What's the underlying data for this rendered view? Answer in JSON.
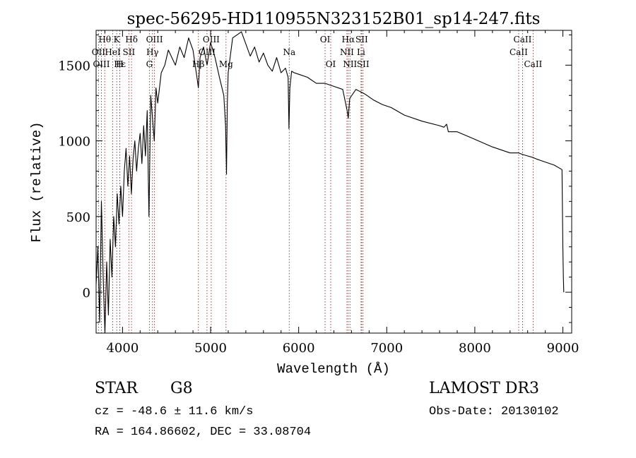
{
  "chart_data": {
    "type": "line",
    "title": "spec-56295-HD110955N323152B01_sp14-247.fits",
    "xlabel": "Wavelength (Å)",
    "ylabel": "Flux (relative)",
    "xlim": [
      3700,
      9100
    ],
    "ylim": [
      -270,
      1730
    ],
    "xticks": [
      4000,
      5000,
      6000,
      7000,
      8000,
      9000
    ],
    "yticks": [
      0,
      500,
      1000,
      1500
    ],
    "line_color": "#000000",
    "marker_color": "#b22222",
    "series": [
      {
        "name": "spectrum",
        "x": [
          3700,
          3720,
          3740,
          3760,
          3780,
          3800,
          3820,
          3840,
          3860,
          3880,
          3900,
          3920,
          3940,
          3960,
          3980,
          4000,
          4020,
          4040,
          4060,
          4080,
          4100,
          4120,
          4140,
          4160,
          4180,
          4200,
          4220,
          4240,
          4260,
          4280,
          4300,
          4320,
          4340,
          4360,
          4380,
          4400,
          4440,
          4480,
          4520,
          4560,
          4600,
          4650,
          4700,
          4750,
          4800,
          4850,
          4861,
          4880,
          4920,
          4960,
          5000,
          5050,
          5100,
          5150,
          5170,
          5180,
          5190,
          5200,
          5250,
          5300,
          5350,
          5400,
          5450,
          5500,
          5550,
          5600,
          5650,
          5700,
          5750,
          5800,
          5850,
          5880,
          5890,
          5900,
          5920,
          5950,
          6000,
          6100,
          6200,
          6300,
          6400,
          6500,
          6550,
          6563,
          6580,
          6650,
          6750,
          6850,
          6950,
          7050,
          7200,
          7400,
          7600,
          7650,
          7680,
          7700,
          7800,
          8000,
          8200,
          8400,
          8498,
          8542,
          8600,
          8662,
          8700,
          8800,
          8900,
          8990,
          9000,
          9005,
          9010
        ],
        "y": [
          50,
          300,
          -200,
          600,
          100,
          -300,
          200,
          -150,
          350,
          100,
          500,
          300,
          650,
          450,
          700,
          500,
          800,
          950,
          700,
          900,
          650,
          880,
          1000,
          800,
          950,
          1050,
          850,
          1100,
          900,
          1200,
          500,
          1300,
          1150,
          1000,
          1350,
          1250,
          1450,
          1500,
          1600,
          1550,
          1500,
          1620,
          1550,
          1680,
          1600,
          1400,
          1350,
          1550,
          1620,
          1500,
          1650,
          1550,
          1420,
          1300,
          1100,
          780,
          1250,
          1450,
          1680,
          1700,
          1720,
          1640,
          1560,
          1620,
          1520,
          1580,
          1500,
          1460,
          1550,
          1450,
          1480,
          1420,
          1080,
          1350,
          1460,
          1450,
          1440,
          1420,
          1380,
          1380,
          1360,
          1340,
          1200,
          1150,
          1280,
          1340,
          1310,
          1270,
          1240,
          1220,
          1170,
          1130,
          1100,
          1090,
          1110,
          1060,
          1060,
          1010,
          960,
          920,
          920,
          910,
          900,
          890,
          880,
          860,
          840,
          810,
          300,
          100,
          0
        ]
      }
    ],
    "line_markers": [
      {
        "label": "Hθ",
        "x": 3798,
        "row": 0
      },
      {
        "label": "OII",
        "x": 3727,
        "row": 1
      },
      {
        "label": "OIII",
        "x": 3760,
        "row": 2
      },
      {
        "label": "K",
        "x": 3934,
        "row": 0
      },
      {
        "label": "HeI",
        "x": 3889,
        "row": 1
      },
      {
        "label": "Hε",
        "x": 3970,
        "row": 2
      },
      {
        "label": "SII",
        "x": 4072,
        "row": 1
      },
      {
        "label": "H",
        "x": 3969,
        "row": 2
      },
      {
        "label": "Hδ",
        "x": 4102,
        "row": 0
      },
      {
        "label": "OIII",
        "x": 4363,
        "row": 0
      },
      {
        "label": "Hγ",
        "x": 4340,
        "row": 1
      },
      {
        "label": "G",
        "x": 4305,
        "row": 2
      },
      {
        "label": "OIII",
        "x": 5007,
        "row": 0
      },
      {
        "label": "OIII",
        "x": 4959,
        "row": 1
      },
      {
        "label": "Hβ",
        "x": 4861,
        "row": 2
      },
      {
        "label": "Mg",
        "x": 5175,
        "row": 2
      },
      {
        "label": "Na",
        "x": 5893,
        "row": 1
      },
      {
        "label": "OI",
        "x": 6300,
        "row": 0
      },
      {
        "label": "OI",
        "x": 6364,
        "row": 2
      },
      {
        "label": "Hα",
        "x": 6563,
        "row": 0
      },
      {
        "label": "SII",
        "x": 6716,
        "row": 0
      },
      {
        "label": "NII",
        "x": 6548,
        "row": 1
      },
      {
        "label": "Li",
        "x": 6708,
        "row": 1
      },
      {
        "label": "NII",
        "x": 6583,
        "row": 2
      },
      {
        "label": "SII",
        "x": 6731,
        "row": 2
      },
      {
        "label": "CaII",
        "x": 8542,
        "row": 0
      },
      {
        "label": "CaII",
        "x": 8498,
        "row": 1
      },
      {
        "label": "CaII",
        "x": 8662,
        "row": 2
      }
    ]
  },
  "info": {
    "object_type": "STAR",
    "subclass": "G8",
    "survey": "LAMOST DR3",
    "cz": "cz = -48.6 ± 11.6 km/s",
    "obs_date": "Obs-Date: 20130102",
    "coords": "RA = 164.86602, DEC =  33.08704"
  }
}
